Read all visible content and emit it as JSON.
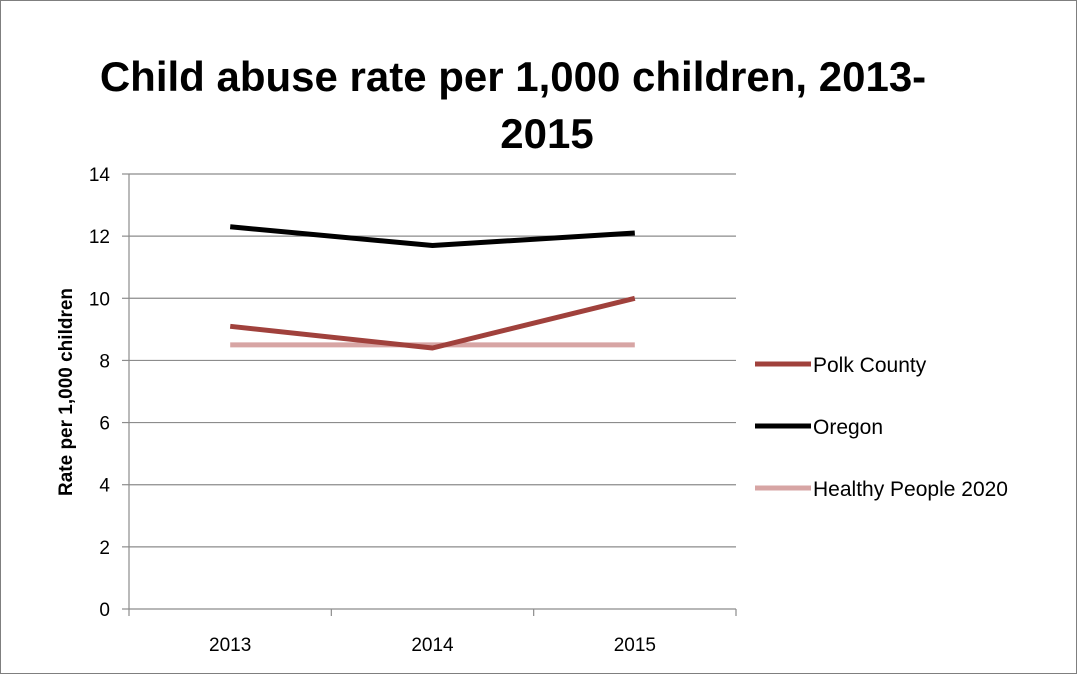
{
  "chart_data": {
    "type": "line",
    "title_lines": [
      "Child abuse rate per 1,000 children, 2013-",
      "2015"
    ],
    "xlabel": "",
    "ylabel": "Rate per 1,000 children",
    "categories": [
      "2013",
      "2014",
      "2015"
    ],
    "ylim": [
      0,
      14
    ],
    "yticks": [
      "0",
      "2",
      "4",
      "6",
      "8",
      "10",
      "12",
      "14"
    ],
    "grid": true,
    "legend_position": "right",
    "series": [
      {
        "name": "Polk County",
        "values": [
          9.1,
          8.4,
          10.0
        ],
        "color": "#a0413c"
      },
      {
        "name": "Oregon",
        "values": [
          12.3,
          11.7,
          12.1
        ],
        "color": "#000000"
      },
      {
        "name": "Healthy People 2020",
        "values": [
          8.5,
          8.5,
          8.5
        ],
        "color": "#d7a5a4"
      }
    ]
  }
}
